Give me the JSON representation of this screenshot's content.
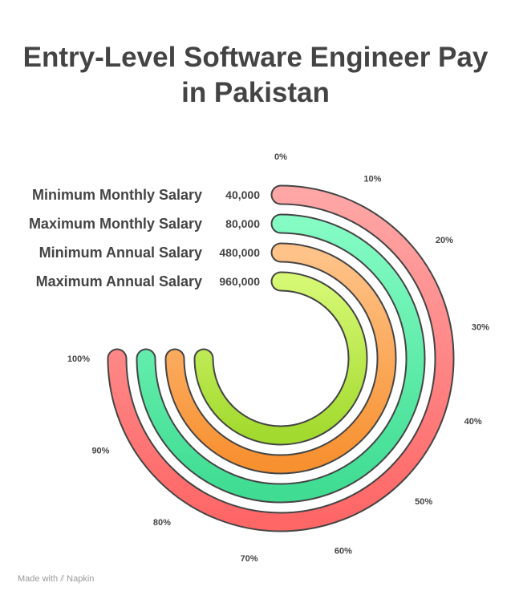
{
  "chart_data": {
    "type": "radial-bar",
    "title_lines": [
      "Entry-Level Software Engineer Pay",
      "in Pakistan"
    ],
    "categories": [
      "Minimum Monthly Salary",
      "Maximum Monthly Salary",
      "Minimum Annual Salary",
      "Maximum Annual Salary"
    ],
    "value_labels": [
      "40,000",
      "80,000",
      "480,000",
      "960,000"
    ],
    "values_percent": [
      100,
      100,
      100,
      100
    ],
    "ticks": [
      "0%",
      "10%",
      "20%",
      "30%",
      "40%",
      "50%",
      "60%",
      "70%",
      "80%",
      "90%",
      "100%"
    ],
    "range": [
      0,
      100
    ],
    "colors": [
      [
        "#ffa6a6",
        "#ff6666"
      ],
      [
        "#84fcc4",
        "#3fdc92"
      ],
      [
        "#ffc389",
        "#f7902f"
      ],
      [
        "#d6f874",
        "#a2da2e"
      ]
    ]
  },
  "footer": {
    "text": "Made with",
    "brand": "Napkin"
  }
}
